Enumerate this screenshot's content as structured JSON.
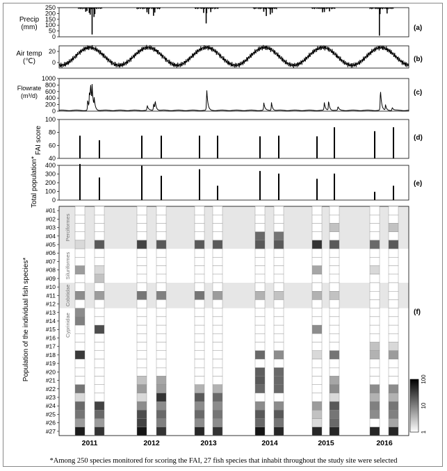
{
  "figure": {
    "footnote": "*Among 250 species monitored for scoring the FAI, 27 fish species that inhabit throughout the study site were selected",
    "years": [
      "2011",
      "2012",
      "2013",
      "2014",
      "2015",
      "2016"
    ]
  },
  "chart_data": [
    {
      "type": "bar",
      "panel_tag": "(a)",
      "ylabel": "Precip\n(mm)",
      "ylim": [
        250,
        0
      ],
      "yticks": [
        "0",
        "50",
        "100",
        "150",
        "200",
        "250"
      ],
      "inverted": true,
      "x": [
        "2011-06-17",
        "2011-06-25",
        "2011-07-09",
        "2011-07-15",
        "2011-07-27",
        "2011-08-08",
        "2011-08-13",
        "2012-07-05",
        "2012-07-15",
        "2012-08-15",
        "2012-08-23",
        "2013-06-25",
        "2013-07-11",
        "2013-07-14",
        "2013-08-09",
        "2014-07-07",
        "2014-07-23",
        "2014-08-17",
        "2014-08-29",
        "2015-07-10",
        "2015-07-22",
        "2015-08-23",
        "2016-07-01",
        "2016-07-05",
        "2016-08-18"
      ],
      "values": [
        35,
        28,
        45,
        60,
        230,
        80,
        55,
        40,
        55,
        70,
        42,
        45,
        135,
        48,
        38,
        35,
        72,
        58,
        45,
        40,
        38,
        32,
        240,
        55,
        50
      ],
      "color": "#000000"
    },
    {
      "type": "line",
      "panel_tag": "(b)",
      "ylabel": "Air temp\n(℃)",
      "ylim": [
        -10,
        30
      ],
      "yticks": [
        "0",
        "20"
      ],
      "series_annual": {
        "min_month": "Jan",
        "max_month": "Aug",
        "min": -5,
        "max": 27
      },
      "color": "#000000"
    },
    {
      "type": "line",
      "panel_tag": "(c)",
      "ylabel": "Flowrate\n(m³/d)",
      "ylim": [
        0,
        1000
      ],
      "yticks": [
        "0",
        "200",
        "400",
        "600",
        "800",
        "1000"
      ],
      "base_flow": 25,
      "peaks": [
        {
          "x": "2011-06-29",
          "value": 350
        },
        {
          "x": "2011-07-10",
          "value": 580
        },
        {
          "x": "2011-07-17",
          "value": 680
        },
        {
          "x": "2011-07-27",
          "value": 580
        },
        {
          "x": "2011-08-09",
          "value": 280
        },
        {
          "x": "2012-07-06",
          "value": 160
        },
        {
          "x": "2012-08-15",
          "value": 220
        },
        {
          "x": "2012-08-25",
          "value": 280
        },
        {
          "x": "2013-07-14",
          "value": 700
        },
        {
          "x": "2014-07-07",
          "value": 240
        },
        {
          "x": "2014-08-24",
          "value": 260
        },
        {
          "x": "2015-07-21",
          "value": 250
        },
        {
          "x": "2015-08-17",
          "value": 310
        },
        {
          "x": "2015-10-15",
          "value": 120
        },
        {
          "x": "2016-07-07",
          "value": 690
        },
        {
          "x": "2016-08-08",
          "value": 170
        },
        {
          "x": "2016-09-19",
          "value": 100
        }
      ],
      "color": "#000000"
    },
    {
      "type": "bar",
      "panel_tag": "(d)",
      "ylabel": "FAI score",
      "ylim": [
        40,
        100
      ],
      "yticks": [
        "40",
        "60",
        "80",
        "100"
      ],
      "x": [
        "2011-05",
        "2011-10",
        "2012-05",
        "2012-10",
        "2013-05",
        "2013-10",
        "2014-05",
        "2014-10",
        "2015-05",
        "2015-10",
        "2016-05",
        "2016-10"
      ],
      "values": [
        75,
        68,
        75,
        75,
        75,
        75,
        74,
        75,
        74,
        88,
        82,
        88
      ],
      "color": "#000000"
    },
    {
      "type": "bar",
      "panel_tag": "(e)",
      "ylabel": "Total population*",
      "ylim": [
        0,
        400
      ],
      "yticks": [
        "0",
        "100",
        "200",
        "300",
        "400"
      ],
      "x": [
        "2011-05",
        "2011-10",
        "2012-05",
        "2012-10",
        "2013-05",
        "2013-10",
        "2014-05",
        "2014-10",
        "2015-05",
        "2015-10",
        "2016-05",
        "2016-10"
      ],
      "values": [
        415,
        260,
        395,
        280,
        355,
        165,
        335,
        305,
        245,
        305,
        95,
        165
      ],
      "color": "#000000"
    },
    {
      "type": "heatmap",
      "panel_tag": "(f)",
      "ylabel": "Population of the individual fish species*",
      "rows": [
        "#01",
        "#02",
        "#03",
        "#04",
        "#05",
        "#06",
        "#07",
        "#08",
        "#09",
        "#10",
        "#11",
        "#12",
        "#13",
        "#14",
        "#15",
        "#16",
        "#17",
        "#18",
        "#19",
        "#20",
        "#21",
        "#22",
        "#23",
        "#24",
        "#25",
        "#26",
        "#27"
      ],
      "groups": [
        {
          "name": "Perciformes",
          "rows": [
            "#01",
            "#05"
          ],
          "shaded": true
        },
        {
          "name": "Siluriformes",
          "rows": [
            "#06",
            "#09"
          ],
          "shaded": false
        },
        {
          "name": "Cobitidae",
          "rows": [
            "#10",
            "#12"
          ],
          "shaded": true
        },
        {
          "name": "Cyprinidae",
          "rows": [
            "#13",
            "#16"
          ],
          "shaded": false
        }
      ],
      "columns": [
        "2011-05",
        "2011-10",
        "2012-05",
        "2012-10",
        "2013-05",
        "2013-10",
        "2014-05",
        "2014-10",
        "2015-05",
        "2015-10",
        "2016-05",
        "2016-10"
      ],
      "colorbar": {
        "scale": "log",
        "min": 1,
        "max": 100,
        "ticks": [
          "1",
          "10",
          "100"
        ],
        "low_color": "#ffffff",
        "high_color": "#000000"
      },
      "values": [
        [
          1,
          1,
          1,
          1,
          1,
          1,
          1,
          1,
          1,
          1,
          1,
          1
        ],
        [
          1,
          1,
          1,
          1,
          1,
          1,
          1,
          1,
          1,
          1,
          1,
          1
        ],
        [
          1,
          1,
          1,
          1,
          1,
          1,
          1,
          1,
          1,
          3,
          1,
          3
        ],
        [
          1,
          1,
          1,
          1,
          1,
          1,
          15,
          12,
          1,
          1,
          1,
          1
        ],
        [
          2,
          20,
          30,
          20,
          20,
          20,
          20,
          20,
          40,
          20,
          15,
          20
        ],
        [
          1,
          1,
          1,
          1,
          1,
          1,
          1,
          1,
          1,
          1,
          1,
          1
        ],
        [
          1,
          1,
          1,
          1,
          1,
          1,
          1,
          1,
          1,
          1,
          1,
          1
        ],
        [
          6,
          2,
          1,
          1,
          1,
          1,
          1,
          1,
          5,
          1,
          2,
          1
        ],
        [
          1,
          3,
          1,
          1,
          1,
          1,
          1,
          1,
          1,
          1,
          1,
          1
        ],
        [
          1,
          1,
          1,
          1,
          1,
          1,
          1,
          1,
          1,
          1,
          1,
          1
        ],
        [
          8,
          6,
          12,
          10,
          12,
          6,
          4,
          3,
          4,
          3,
          1,
          1
        ],
        [
          1,
          1,
          1,
          1,
          1,
          1,
          1,
          1,
          1,
          1,
          1,
          1
        ],
        [
          8,
          1,
          1,
          1,
          1,
          1,
          1,
          1,
          1,
          1,
          1,
          1
        ],
        [
          10,
          1,
          1,
          1,
          1,
          1,
          1,
          1,
          1,
          1,
          1,
          1
        ],
        [
          1,
          25,
          1,
          1,
          1,
          1,
          1,
          1,
          8,
          1,
          1,
          1
        ],
        [
          1,
          1,
          1,
          1,
          1,
          1,
          1,
          1,
          1,
          1,
          1,
          1
        ],
        [
          1,
          1,
          1,
          1,
          1,
          1,
          1,
          1,
          1,
          1,
          3,
          2
        ],
        [
          35,
          1,
          1,
          1,
          1,
          1,
          15,
          8,
          2,
          12,
          4,
          6
        ],
        [
          1,
          1,
          1,
          1,
          1,
          1,
          1,
          1,
          1,
          1,
          1,
          1
        ],
        [
          1,
          1,
          1,
          1,
          1,
          1,
          18,
          15,
          1,
          1,
          1,
          1
        ],
        [
          1,
          1,
          3,
          5,
          1,
          1,
          20,
          15,
          1,
          5,
          1,
          1
        ],
        [
          12,
          1,
          6,
          6,
          4,
          4,
          15,
          15,
          1,
          8,
          8,
          8
        ],
        [
          2,
          1,
          2,
          40,
          20,
          15,
          1,
          1,
          1,
          2,
          4,
          4
        ],
        [
          15,
          30,
          8,
          8,
          8,
          8,
          8,
          8,
          6,
          20,
          10,
          12
        ],
        [
          12,
          15,
          25,
          15,
          15,
          12,
          20,
          20,
          3,
          12,
          8,
          10
        ],
        [
          6,
          6,
          30,
          10,
          8,
          8,
          15,
          12,
          2,
          15,
          1,
          5
        ],
        [
          60,
          40,
          70,
          40,
          50,
          40,
          70,
          50,
          50,
          50,
          50,
          50
        ]
      ]
    }
  ]
}
